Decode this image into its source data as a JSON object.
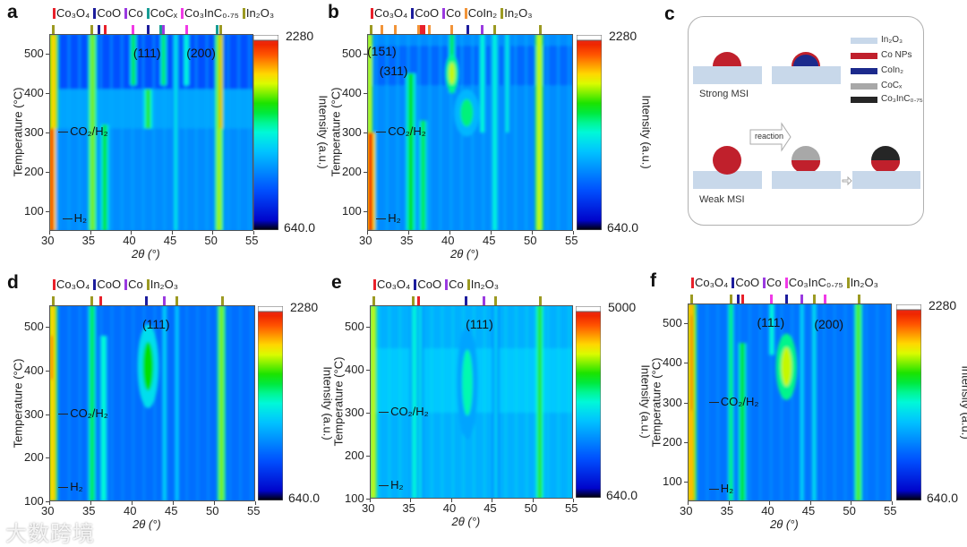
{
  "panel_letters": {
    "a": "a",
    "b": "b",
    "c": "c",
    "d": "d",
    "e": "e",
    "f": "f"
  },
  "phase_colors": {
    "Co3O4": "#e8202a",
    "CoO": "#1c1c9c",
    "Co": "#9a3ae0",
    "CoCx": "#179c94",
    "Co3InC": "#f03ae6",
    "In2O3": "#9c9a22",
    "CoIn2": "#f29438"
  },
  "chart_data": [
    {
      "id": "a",
      "type": "heatmap",
      "xlabel": "2θ (°)",
      "ylabel": "Temperature (°C)",
      "colorbar_label": "Intensity (a.u.)",
      "xlim": [
        30,
        55
      ],
      "ylim": [
        50,
        550
      ],
      "xticks": [
        30,
        35,
        40,
        45,
        50,
        55
      ],
      "yticks": [
        100,
        200,
        300,
        400,
        500
      ],
      "colorbar_range": [
        "640.0",
        "2280"
      ],
      "legend": [
        {
          "label": "Co₃O₄",
          "phase": "Co3O4"
        },
        {
          "label": "CoO",
          "phase": "CoO"
        },
        {
          "label": "Co",
          "phase": "Co"
        },
        {
          "label": "CoCₓ",
          "phase": "CoCx"
        },
        {
          "label": "Co₃InC₀.₇₅",
          "phase": "Co3InC"
        },
        {
          "label": "In₂O₃",
          "phase": "In2O3"
        }
      ],
      "reference_peaks": [
        [
          30.5,
          "In2O3"
        ],
        [
          35.2,
          "In2O3"
        ],
        [
          36.1,
          "CoO"
        ],
        [
          36.9,
          "Co3O4"
        ],
        [
          40.3,
          "Co3InC"
        ],
        [
          42.1,
          "CoO"
        ],
        [
          43.7,
          "CoCx"
        ],
        [
          44.0,
          "Co"
        ],
        [
          46.8,
          "Co3InC"
        ],
        [
          50.6,
          "CoCx"
        ],
        [
          51.0,
          "In2O3"
        ]
      ],
      "annotations": [
        {
          "text": "(111)",
          "x": 40.3,
          "t": 500
        },
        {
          "text": "(200)",
          "x": 46.8,
          "t": 500
        },
        {
          "text": "CO₂/H₂",
          "x": 31,
          "t": 300,
          "arrow": true
        },
        {
          "text": "H₂",
          "x": 31.5,
          "t": 80,
          "arrow": true
        }
      ],
      "background_level": 0.28,
      "bands": [
        [
          410,
          550,
          0.2
        ],
        [
          50,
          310,
          0.3
        ],
        [
          310,
          410,
          0.34
        ]
      ],
      "peaks": [
        [
          30.3,
          0.5,
          0.92,
          50,
          310
        ],
        [
          30.5,
          0.6,
          0.78,
          310,
          550
        ],
        [
          35.3,
          0.5,
          0.68,
          50,
          550
        ],
        [
          36.8,
          0.5,
          0.6,
          50,
          320
        ],
        [
          40.3,
          0.4,
          0.6,
          420,
          550
        ],
        [
          42.1,
          0.5,
          0.64,
          310,
          410
        ],
        [
          44.0,
          0.4,
          0.58,
          420,
          550
        ],
        [
          45.5,
          0.4,
          0.45,
          50,
          550
        ],
        [
          46.8,
          0.4,
          0.5,
          420,
          550
        ],
        [
          50.8,
          0.5,
          0.7,
          50,
          550
        ],
        [
          51.0,
          0.3,
          0.8,
          310,
          550
        ]
      ],
      "blobs": []
    },
    {
      "id": "b",
      "type": "heatmap",
      "xlabel": "2θ (°)",
      "ylabel": "Temperature (°C)",
      "colorbar_label": "Intensity (a.u.)",
      "xlim": [
        30,
        55
      ],
      "ylim": [
        50,
        550
      ],
      "xticks": [
        30,
        35,
        40,
        45,
        50,
        55
      ],
      "yticks": [
        100,
        200,
        300,
        400,
        500
      ],
      "colorbar_range": [
        "640.0",
        "2280"
      ],
      "legend": [
        {
          "label": "Co₃O₄",
          "phase": "Co3O4"
        },
        {
          "label": "CoO",
          "phase": "CoO"
        },
        {
          "label": "Co",
          "phase": "Co"
        },
        {
          "label": "CoIn₂",
          "phase": "CoIn2"
        },
        {
          "label": "In₂O₃",
          "phase": "In2O3"
        }
      ],
      "reference_peaks": [
        [
          30.5,
          "In2O3"
        ],
        [
          31.8,
          "CoIn2"
        ],
        [
          33.4,
          "CoIn2"
        ],
        [
          36.3,
          "CoIn2"
        ],
        [
          36.6,
          "Co3O4"
        ],
        [
          36.9,
          "Co3O4"
        ],
        [
          37.5,
          "CoIn2"
        ],
        [
          40.3,
          "CoIn2"
        ],
        [
          42.2,
          "CoO"
        ],
        [
          44.0,
          "Co"
        ],
        [
          45.5,
          "In2O3"
        ],
        [
          51.0,
          "In2O3"
        ]
      ],
      "annotations": [
        {
          "text": "(151)",
          "x": 30.0,
          "t": 505
        },
        {
          "text": "(311)",
          "x": 31.5,
          "t": 455
        },
        {
          "text": "CO₂/H₂",
          "x": 31,
          "t": 300,
          "arrow": true
        },
        {
          "text": "H₂",
          "x": 31,
          "t": 80,
          "arrow": true
        }
      ],
      "background_level": 0.3,
      "bands": [
        [
          420,
          520,
          0.24
        ]
      ],
      "peaks": [
        [
          30.4,
          0.6,
          0.92,
          50,
          300
        ],
        [
          30.3,
          0.4,
          0.72,
          300,
          550
        ],
        [
          35.3,
          0.6,
          0.62,
          50,
          450
        ],
        [
          36.8,
          0.5,
          0.58,
          50,
          330
        ],
        [
          40.3,
          0.4,
          0.6,
          400,
          550
        ],
        [
          44.0,
          0.4,
          0.5,
          300,
          550
        ],
        [
          45.5,
          0.5,
          0.48,
          50,
          550
        ],
        [
          47.0,
          0.4,
          0.46,
          300,
          550
        ],
        [
          50.9,
          0.5,
          0.72,
          50,
          550
        ]
      ],
      "blobs": [
        [
          40.3,
          450,
          0.3,
          40,
          0.72
        ],
        [
          42.1,
          350,
          0.6,
          50,
          0.55
        ]
      ]
    },
    {
      "id": "d",
      "type": "heatmap",
      "xlabel": "2θ (°)",
      "ylabel": "Temperature (°C)",
      "colorbar_label": "Intensity (a.u.)",
      "xlim": [
        30,
        55
      ],
      "ylim": [
        100,
        550
      ],
      "xticks": [
        30,
        35,
        40,
        45,
        50,
        55
      ],
      "yticks": [
        100,
        200,
        300,
        400,
        500
      ],
      "colorbar_range": [
        "640.0",
        "2280"
      ],
      "legend": [
        {
          "label": "Co₃O₄",
          "phase": "Co3O4"
        },
        {
          "label": "CoO",
          "phase": "CoO"
        },
        {
          "label": "Co",
          "phase": "Co"
        },
        {
          "label": "In₂O₃",
          "phase": "In2O3"
        }
      ],
      "reference_peaks": [
        [
          30.5,
          "In2O3"
        ],
        [
          35.2,
          "In2O3"
        ],
        [
          36.2,
          "Co3O4"
        ],
        [
          41.8,
          "CoO"
        ],
        [
          44.0,
          "Co"
        ],
        [
          45.5,
          "In2O3"
        ],
        [
          51.0,
          "In2O3"
        ]
      ],
      "annotations": [
        {
          "text": "(111)",
          "x": 41.3,
          "t": 505
        },
        {
          "text": "CO₂/H₂",
          "x": 31,
          "t": 300,
          "arrow": true
        },
        {
          "text": "H₂",
          "x": 31,
          "t": 130,
          "arrow": true
        }
      ],
      "background_level": 0.25,
      "bands": [],
      "peaks": [
        [
          30.4,
          0.6,
          0.78,
          100,
          550
        ],
        [
          30.3,
          0.3,
          0.9,
          380,
          480
        ],
        [
          35.2,
          0.5,
          0.58,
          100,
          550
        ],
        [
          36.6,
          0.5,
          0.5,
          100,
          480
        ],
        [
          44.0,
          0.4,
          0.42,
          100,
          550
        ],
        [
          45.5,
          0.4,
          0.4,
          100,
          550
        ],
        [
          50.9,
          0.5,
          0.68,
          100,
          550
        ]
      ],
      "blobs": [
        [
          42.0,
          410,
          0.5,
          80,
          0.62
        ]
      ]
    },
    {
      "id": "e",
      "type": "heatmap",
      "xlabel": "2θ (°)",
      "ylabel": "Temperature (°C)",
      "colorbar_label": "Intensity (a.u.)",
      "xlim": [
        30,
        55
      ],
      "ylim": [
        100,
        550
      ],
      "xticks": [
        30,
        35,
        40,
        45,
        50,
        55
      ],
      "yticks": [
        100,
        200,
        300,
        400,
        500
      ],
      "colorbar_range": [
        "640.0",
        "5000"
      ],
      "legend": [
        {
          "label": "Co₃O₄",
          "phase": "Co3O4"
        },
        {
          "label": "CoO",
          "phase": "CoO"
        },
        {
          "label": "Co",
          "phase": "Co"
        },
        {
          "label": "In₂O₃",
          "phase": "In2O3"
        }
      ],
      "reference_peaks": [
        [
          30.5,
          "In2O3"
        ],
        [
          35.3,
          "In2O3"
        ],
        [
          36.0,
          "Co3O4"
        ],
        [
          41.8,
          "CoO"
        ],
        [
          44.0,
          "Co"
        ],
        [
          45.5,
          "In2O3"
        ],
        [
          51.0,
          "In2O3"
        ]
      ],
      "annotations": [
        {
          "text": "(111)",
          "x": 41.8,
          "t": 505
        },
        {
          "text": "CO₂/H₂",
          "x": 31,
          "t": 300,
          "arrow": true
        },
        {
          "text": "H₂",
          "x": 31,
          "t": 130,
          "arrow": true
        }
      ],
      "background_level": 0.36,
      "bands": [
        [
          300,
          450,
          0.4
        ]
      ],
      "peaks": [
        [
          30.4,
          0.5,
          0.72,
          100,
          550
        ],
        [
          35.5,
          0.6,
          0.48,
          100,
          550
        ],
        [
          36.2,
          0.4,
          0.44,
          100,
          550
        ],
        [
          45.5,
          0.4,
          0.42,
          100,
          550
        ],
        [
          50.9,
          0.5,
          0.64,
          100,
          550
        ]
      ],
      "blobs": [
        [
          42.0,
          370,
          0.5,
          110,
          0.52
        ]
      ]
    },
    {
      "id": "f",
      "type": "heatmap",
      "xlabel": "2θ (°)",
      "ylabel": "Temperature (°C)",
      "colorbar_label": "Intensity (a.u.)",
      "xlim": [
        30,
        55
      ],
      "ylim": [
        50,
        550
      ],
      "xticks": [
        30,
        35,
        40,
        45,
        50,
        55
      ],
      "yticks": [
        100,
        200,
        300,
        400,
        500
      ],
      "colorbar_range": [
        "640.0",
        "2280"
      ],
      "legend": [
        {
          "label": "Co₃O₄",
          "phase": "Co3O4"
        },
        {
          "label": "CoO",
          "phase": "CoO"
        },
        {
          "label": "Co",
          "phase": "Co"
        },
        {
          "label": "Co₃InC₀.₇₅",
          "phase": "Co3InC"
        },
        {
          "label": "In₂O₃",
          "phase": "In2O3"
        }
      ],
      "reference_peaks": [
        [
          30.5,
          "In2O3"
        ],
        [
          35.3,
          "In2O3"
        ],
        [
          36.2,
          "CoO"
        ],
        [
          36.7,
          "Co3O4"
        ],
        [
          40.3,
          "Co3InC"
        ],
        [
          42.1,
          "CoO"
        ],
        [
          44.0,
          "Co"
        ],
        [
          45.5,
          "In2O3"
        ],
        [
          46.8,
          "Co3InC"
        ],
        [
          51.0,
          "In2O3"
        ]
      ],
      "annotations": [
        {
          "text": "(111)",
          "x": 38.5,
          "t": 500
        },
        {
          "text": "(200)",
          "x": 45.5,
          "t": 495
        },
        {
          "text": "CO₂/H₂",
          "x": 32.5,
          "t": 300,
          "arrow": true
        },
        {
          "text": "H₂",
          "x": 32.5,
          "t": 80,
          "arrow": true
        }
      ],
      "background_level": 0.26,
      "bands": [],
      "peaks": [
        [
          30.4,
          0.7,
          0.8,
          50,
          550
        ],
        [
          30.5,
          0.3,
          0.88,
          280,
          520
        ],
        [
          35.3,
          0.4,
          0.56,
          50,
          550
        ],
        [
          36.7,
          0.5,
          0.62,
          50,
          450
        ],
        [
          40.3,
          0.4,
          0.5,
          420,
          550
        ],
        [
          44.0,
          0.4,
          0.42,
          50,
          550
        ],
        [
          45.5,
          0.4,
          0.44,
          50,
          550
        ],
        [
          50.9,
          0.5,
          0.66,
          50,
          550
        ]
      ],
      "blobs": [
        [
          42.1,
          390,
          0.5,
          70,
          0.72
        ]
      ]
    }
  ],
  "diagram_c": {
    "legend": [
      {
        "label": "In₂O₃",
        "color": "#c8d8ea"
      },
      {
        "label": "Co NPs",
        "color": "#c0202c"
      },
      {
        "label": "CoIn₂",
        "color": "#1c2a8c"
      },
      {
        "label": "CoCₓ",
        "color": "#a8a8a8"
      },
      {
        "label": "Co₃InC₀.₇₅",
        "color": "#262626"
      }
    ],
    "strong_label": "Strong MSI",
    "weak_label": "Weak MSI",
    "arrow_label": "reaction"
  },
  "watermark": "大数跨境"
}
